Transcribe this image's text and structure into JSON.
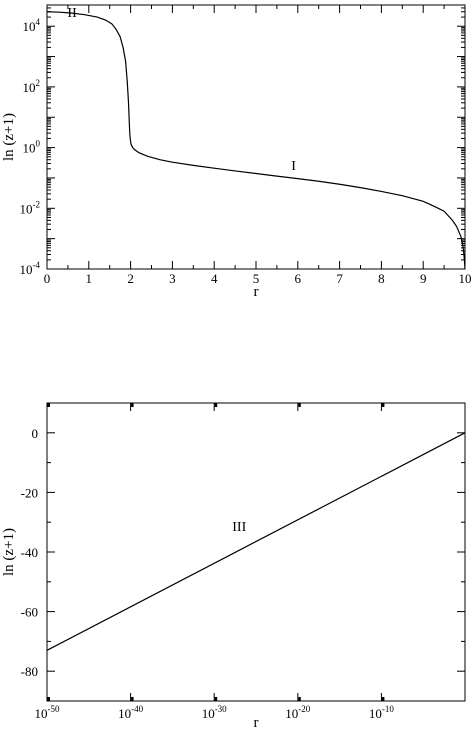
{
  "chart_data": [
    {
      "type": "line",
      "title": "",
      "xlabel": "r",
      "ylabel": "ln (z+1)",
      "xlim": [
        0,
        10
      ],
      "ylim": [
        0.0001,
        50000
      ],
      "yscale": "log",
      "grid": false,
      "x_ticks": [
        0,
        1,
        2,
        3,
        4,
        5,
        6,
        7,
        8,
        9,
        10
      ],
      "x_tick_labels": [
        "0",
        "1",
        "2",
        "3",
        "4",
        "5",
        "6",
        "7",
        "8",
        "9",
        "10"
      ],
      "y_ticks": [
        {
          "value": 0.0001,
          "base": "10",
          "exp": "-4"
        },
        {
          "value": 0.01,
          "base": "10",
          "exp": "-2"
        },
        {
          "value": 1,
          "base": "10",
          "exp": "0"
        },
        {
          "value": 100,
          "base": "10",
          "exp": "2"
        },
        {
          "value": 10000,
          "base": "10",
          "exp": "4"
        }
      ],
      "series": [
        {
          "x": [
            0,
            0.3,
            0.6,
            0.9,
            1.2,
            1.4,
            1.55,
            1.65,
            1.75,
            1.82,
            1.88,
            1.92,
            1.95,
            1.97,
            1.98,
            1.99,
            1.995,
            2.0,
            2.01,
            2.05,
            2.1,
            2.2,
            2.4,
            2.7,
            3.0,
            3.5,
            4.0,
            4.5,
            5.0,
            5.5,
            6.0,
            6.5,
            7.0,
            7.5,
            8.0,
            8.5,
            9.0,
            9.3,
            9.5,
            9.7,
            9.8,
            9.9,
            9.95,
            9.98,
            10.0
          ],
          "y": [
            30000,
            29000,
            27000,
            24000,
            20000,
            16000,
            12000,
            8000,
            4500,
            2000,
            700,
            150,
            30,
            6,
            3,
            2,
            1.8,
            1.6,
            1.3,
            1.0,
            0.85,
            0.68,
            0.52,
            0.4,
            0.33,
            0.26,
            0.21,
            0.17,
            0.14,
            0.115,
            0.095,
            0.078,
            0.062,
            0.048,
            0.036,
            0.026,
            0.017,
            0.011,
            0.008,
            0.004,
            0.0025,
            0.0012,
            0.0006,
            0.00025,
            0.0001
          ]
        }
      ],
      "annotations": [
        {
          "text": "II",
          "x": 0.6,
          "y": 20000
        },
        {
          "text": "I",
          "x": 5.9,
          "y": 0.18
        }
      ]
    },
    {
      "type": "line",
      "title": "",
      "xlabel": "r",
      "ylabel": "ln (z+1)",
      "xscale": "log",
      "xlim": [
        1e-50,
        1
      ],
      "ylim": [
        -90,
        10
      ],
      "grid": false,
      "x_ticks": [
        {
          "value": 1e-50,
          "base": "10",
          "exp": "-50"
        },
        {
          "value": 1e-40,
          "base": "10",
          "exp": "-40"
        },
        {
          "value": 1e-30,
          "base": "10",
          "exp": "-30"
        },
        {
          "value": 1e-20,
          "base": "10",
          "exp": "-20"
        },
        {
          "value": 1e-10,
          "base": "10",
          "exp": "-10"
        }
      ],
      "y_ticks": [
        0,
        -20,
        -40,
        -60,
        -80
      ],
      "y_tick_labels": [
        "0",
        "-20",
        "-40",
        "-60",
        "-80"
      ],
      "series": [
        {
          "x": [
            1e-50,
            1
          ],
          "y": [
            -73,
            0
          ]
        }
      ],
      "annotations": [
        {
          "text": "III",
          "x": 1e-27,
          "y": -33
        }
      ]
    }
  ]
}
